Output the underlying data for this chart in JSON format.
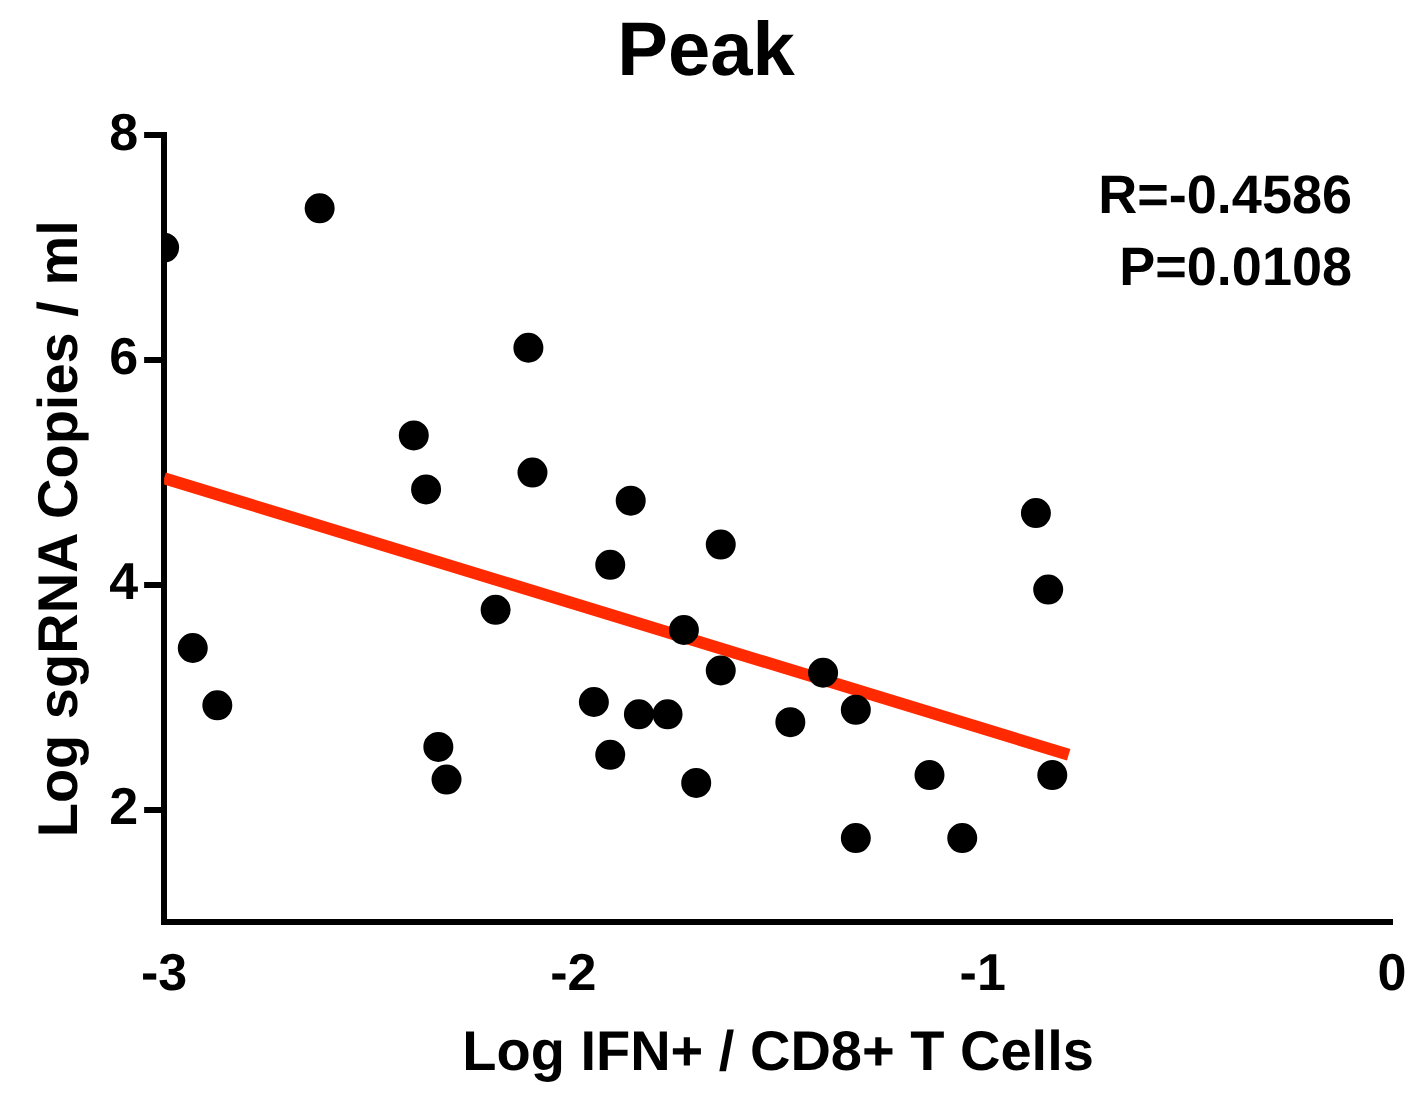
{
  "chart_data": {
    "type": "scatter",
    "title": "Peak",
    "xlabel": "Log IFN+ / CD8+ T Cells",
    "ylabel": "Log sgRNA Copies / ml",
    "xlim": [
      -3,
      0
    ],
    "xticks": [
      -3,
      -2,
      -1,
      0
    ],
    "ylim": [
      1,
      8
    ],
    "yticks": [
      2,
      4,
      6,
      8
    ],
    "grid": false,
    "legend": false,
    "annotations": [
      "R=-0.4586",
      "P=0.0108"
    ],
    "series": [
      {
        "color": "#000000",
        "marker": "circle",
        "x": [
          -3,
          -2.62,
          -2.93,
          -2.87,
          -2.39,
          -2.36,
          -2.33,
          -2.31,
          -2.11,
          -2.1,
          -2.19,
          -1.91,
          -1.86,
          -1.95,
          -1.91,
          -1.84,
          -1.77,
          -1.73,
          -1.7,
          -1.64,
          -1.64,
          -1.47,
          -1.39,
          -1.31,
          -1.31,
          -1.13,
          -1.05,
          -0.87,
          -0.84,
          -0.83
        ],
        "values": [
          7.0,
          7.35,
          3.44,
          2.93,
          5.33,
          4.85,
          2.56,
          2.27,
          6.11,
          5.0,
          3.78,
          4.18,
          4.75,
          2.96,
          2.49,
          2.85,
          2.85,
          3.6,
          2.24,
          3.24,
          4.36,
          2.78,
          3.22,
          2.89,
          1.75,
          2.31,
          1.75,
          4.64,
          3.96,
          2.31
        ]
      },
      {
        "type": "line",
        "color": "#ff2a00",
        "line_style": "solid",
        "x": [
          -3,
          -0.79
        ],
        "values": [
          4.95,
          2.49
        ]
      }
    ]
  }
}
